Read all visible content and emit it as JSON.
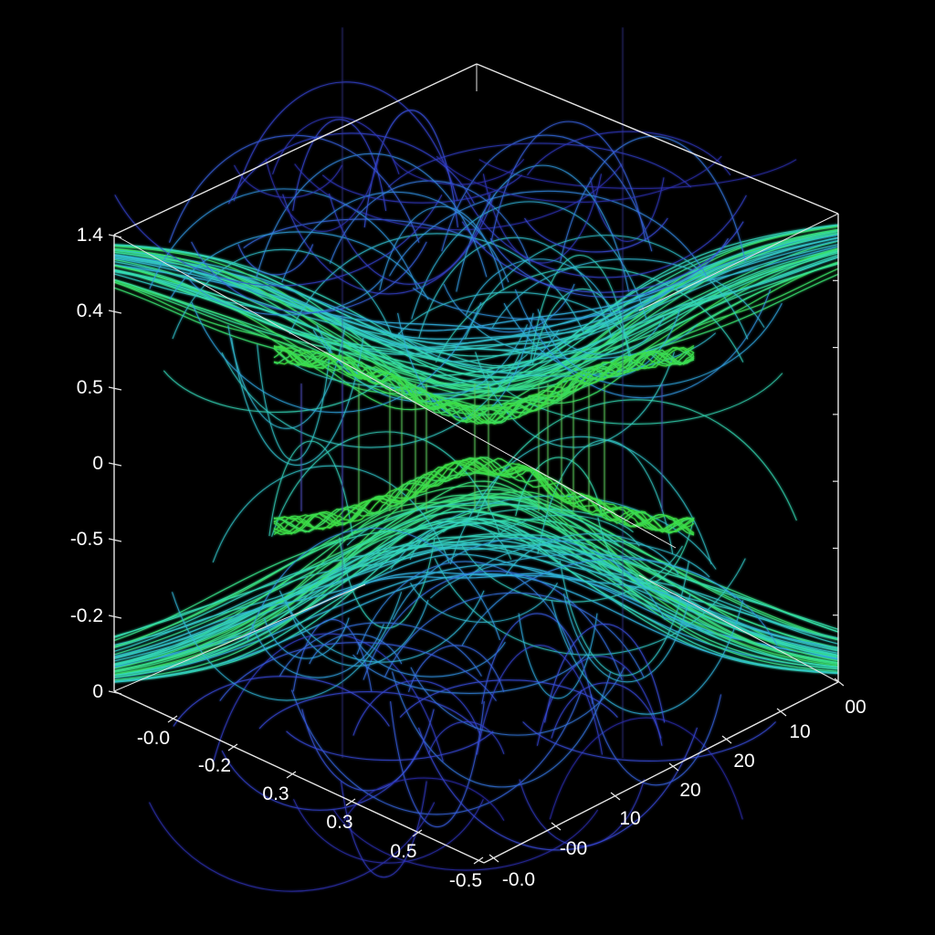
{
  "chart_data": {
    "type": "surface3d-wireframe",
    "title": "",
    "description": "3D wireframe plot of many oscillating curves forming two mirrored bowl-shaped sheets (upper sheet opening upward, lower sheet opening downward) separated by a gap near z=0, connected by thin vertical lines. Colormap from blue/violet (far from gap) through cyan to green (near gap).",
    "background": "#000000",
    "box_color": "#e6e6e6",
    "colormap": [
      "#2a2aa8",
      "#3a4ee0",
      "#2fa8e0",
      "#35e0b0",
      "#3cdc3c"
    ],
    "z_axis": {
      "tick_labels": [
        "1.4",
        "0.4",
        "0.5",
        "0",
        "-0.5",
        "-0.2",
        "0"
      ],
      "label": ""
    },
    "x_axis": {
      "tick_labels": [
        "-0.0",
        "-0.2",
        "0.3",
        "0.3",
        "0.5",
        "-0.5"
      ],
      "label": ""
    },
    "y_axis": {
      "tick_labels": [
        "-0.0",
        "-00",
        "10",
        "20",
        "20",
        "10",
        "00"
      ],
      "label": ""
    },
    "right_axis_ticks": 6,
    "upper_sheet": {
      "z_min_approx": 0.5,
      "z_max_approx": 1.4,
      "shape": "bowl-up"
    },
    "lower_sheet": {
      "z_min_approx": 0,
      "z_max_approx": -0.5,
      "shape": "bowl-down"
    },
    "grid": false,
    "legend": null
  }
}
